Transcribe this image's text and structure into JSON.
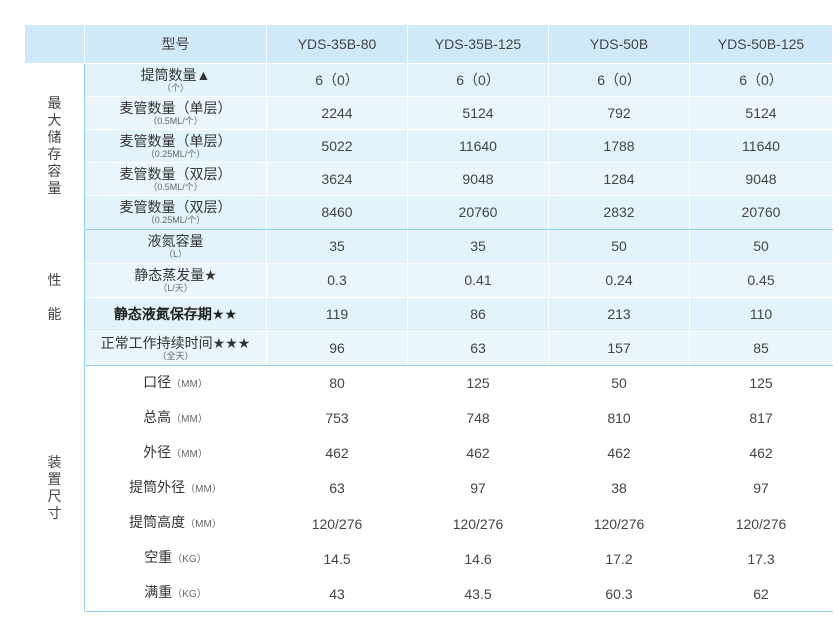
{
  "header": {
    "corner": "",
    "model_label": "型号",
    "models": [
      "YDS-35B-80",
      "YDS-35B-125",
      "YDS-50B",
      "YDS-50B-125"
    ]
  },
  "groups": [
    {
      "lines": [
        "最",
        "大",
        "储",
        "存",
        "容",
        "量"
      ],
      "rows": [
        {
          "label": "提筒数量▲",
          "sub": "（个）",
          "values": [
            "6（0）",
            "6（0）",
            "6（0）",
            "6（0）"
          ]
        },
        {
          "label": "麦管数量（单层）",
          "sub": "（0.5ML/个）",
          "values": [
            "2244",
            "5124",
            "792",
            "5124"
          ]
        },
        {
          "label": "麦管数量（单层）",
          "sub": "（0.25ML/个）",
          "values": [
            "5022",
            "11640",
            "1788",
            "11640"
          ]
        },
        {
          "label": "麦管数量（双层）",
          "sub": "（0.5ML/个）",
          "values": [
            "3624",
            "9048",
            "1284",
            "9048"
          ]
        },
        {
          "label": "麦管数量（双层）",
          "sub": "（0.25ML/个）",
          "values": [
            "8460",
            "20760",
            "2832",
            "20760"
          ]
        }
      ]
    },
    {
      "lines": [
        "性",
        "",
        "能"
      ],
      "rows": [
        {
          "label": "液氮容量",
          "sub": "（L）",
          "values": [
            "35",
            "35",
            "50",
            "50"
          ]
        },
        {
          "label": "静态蒸发量★",
          "sub": "（L/天）",
          "values": [
            "0.3",
            "0.41",
            "0.24",
            "0.45"
          ]
        },
        {
          "label": "静态液氮保存期★★",
          "sub": "",
          "bold": true,
          "values": [
            "119",
            "86",
            "213",
            "110"
          ]
        },
        {
          "label": "正常工作持续时间★★★",
          "sub": "（全天）",
          "values": [
            "96",
            "63",
            "157",
            "85"
          ]
        }
      ]
    },
    {
      "lines": [
        "装",
        "置",
        "尺",
        "寸"
      ],
      "rows": [
        {
          "label": "口径",
          "unit": "（MM）",
          "values": [
            "80",
            "125",
            "50",
            "125"
          ]
        },
        {
          "label": "总高",
          "unit": "（MM）",
          "values": [
            "753",
            "748",
            "810",
            "817"
          ]
        },
        {
          "label": "外径",
          "unit": "（MM）",
          "values": [
            "462",
            "462",
            "462",
            "462"
          ]
        },
        {
          "label": "提筒外径",
          "unit": "（MM）",
          "values": [
            "63",
            "97",
            "38",
            "97"
          ]
        },
        {
          "label": "提筒高度",
          "unit": "（MM）",
          "values": [
            "120/276",
            "120/276",
            "120/276",
            "120/276"
          ]
        },
        {
          "label": "空重",
          "unit": "（KG）",
          "values": [
            "14.5",
            "14.6",
            "17.2",
            "17.3"
          ]
        },
        {
          "label": "满重",
          "unit": "（KG）",
          "values": [
            "43",
            "43.5",
            "60.3",
            "62"
          ]
        }
      ]
    }
  ]
}
